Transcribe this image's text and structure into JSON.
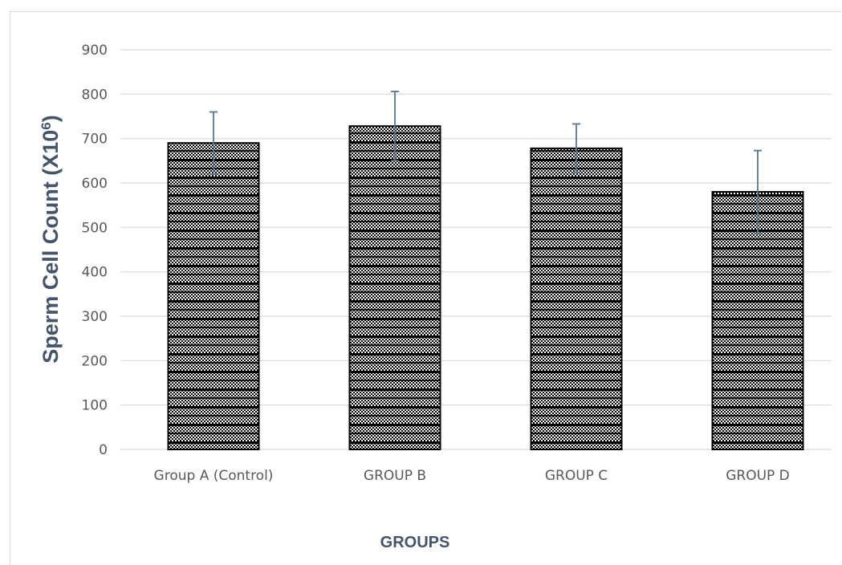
{
  "chart_data": {
    "type": "bar",
    "categories": [
      "Group A (Control)",
      "GROUP B",
      "GROUP C",
      "GROUP D"
    ],
    "values": [
      690,
      728,
      678,
      580
    ],
    "error": [
      70,
      78,
      55,
      93
    ],
    "xlabel": "GROUPS",
    "ylabel": "Sperm Cell Count (X10",
    "ylabel_superscript": "6",
    "ylabel_suffix": ")",
    "ylim": [
      0,
      900
    ],
    "yticks": [
      0,
      100,
      200,
      300,
      400,
      500,
      600,
      700,
      800,
      900
    ],
    "grid": true,
    "bar_pattern": "black checkered with horizontal bands",
    "error_bar_color": "#5b7790",
    "gridline_color": "#d9d9d9"
  }
}
